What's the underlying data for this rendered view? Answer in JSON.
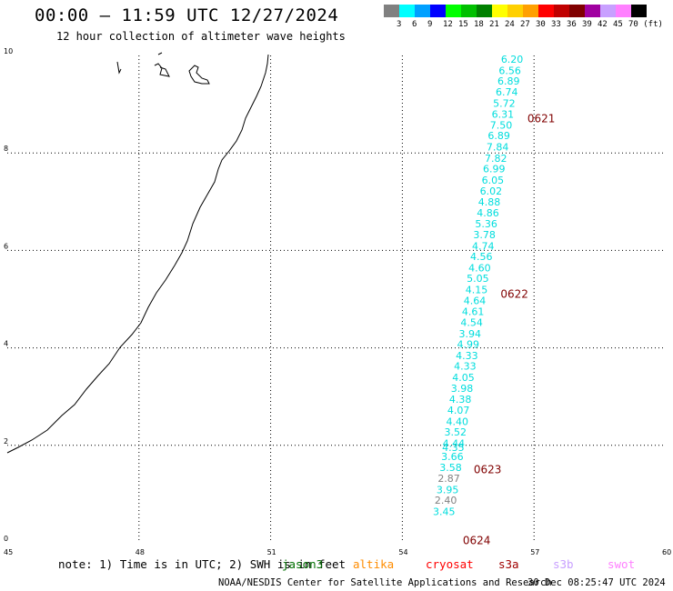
{
  "header": {
    "title": "00:00 — 11:59 UTC 12/27/2024",
    "subtitle": "12 hour collection of altimeter wave heights"
  },
  "legend": {
    "colors": [
      "#808080",
      "#00ffff",
      "#00a0ff",
      "#0000ff",
      "#00ff00",
      "#00c000",
      "#008000",
      "#ffff00",
      "#ffd000",
      "#ffa000",
      "#ff0000",
      "#c00000",
      "#800000",
      "#a000a0",
      "#c8a0ff",
      "#ff80ff",
      "#000000"
    ],
    "labels": [
      "3",
      "6",
      "9",
      "12",
      "15",
      "18",
      "21",
      "24",
      "27",
      "30",
      "33",
      "36",
      "39",
      "42",
      "45",
      "70 (ft)"
    ]
  },
  "map": {
    "lon_ticks": [
      "45",
      "48",
      "51",
      "54",
      "57",
      "60"
    ],
    "lat_ticks": [
      "0",
      "2",
      "4",
      "6",
      "8",
      "10"
    ],
    "lon_range": [
      45,
      60
    ],
    "lat_range": [
      0,
      10
    ],
    "track_times": [
      {
        "label": "0621",
        "lat": 8.7
      },
      {
        "label": "0622",
        "lat": 5.1
      },
      {
        "label": "0623",
        "lat": 1.5
      },
      {
        "label": "0624",
        "lat": 0.05
      }
    ],
    "track_points": [
      {
        "lon": 56.5,
        "lat": 9.85,
        "v": "6.20"
      },
      {
        "lon": 56.45,
        "lat": 9.62,
        "v": "6.56"
      },
      {
        "lon": 56.42,
        "lat": 9.4,
        "v": "6.89"
      },
      {
        "lon": 56.38,
        "lat": 9.18,
        "v": "6.74"
      },
      {
        "lon": 56.32,
        "lat": 8.95,
        "v": "5.72"
      },
      {
        "lon": 56.29,
        "lat": 8.72,
        "v": "6.31"
      },
      {
        "lon": 56.25,
        "lat": 8.5,
        "v": "7.50"
      },
      {
        "lon": 56.2,
        "lat": 8.28,
        "v": "6.89"
      },
      {
        "lon": 56.17,
        "lat": 8.05,
        "v": "7.84"
      },
      {
        "lon": 56.13,
        "lat": 7.82,
        "v": "7.82"
      },
      {
        "lon": 56.09,
        "lat": 7.6,
        "v": "6.99"
      },
      {
        "lon": 56.06,
        "lat": 7.37,
        "v": "6.05"
      },
      {
        "lon": 56.02,
        "lat": 7.15,
        "v": "6.02"
      },
      {
        "lon": 55.98,
        "lat": 6.92,
        "v": "4.88"
      },
      {
        "lon": 55.95,
        "lat": 6.7,
        "v": "4.86"
      },
      {
        "lon": 55.91,
        "lat": 6.47,
        "v": "5.36"
      },
      {
        "lon": 55.87,
        "lat": 6.25,
        "v": "3.78"
      },
      {
        "lon": 55.84,
        "lat": 6.02,
        "v": "4.74"
      },
      {
        "lon": 55.8,
        "lat": 5.8,
        "v": "4.56"
      },
      {
        "lon": 55.76,
        "lat": 5.57,
        "v": "4.60"
      },
      {
        "lon": 55.72,
        "lat": 5.35,
        "v": "5.05"
      },
      {
        "lon": 55.69,
        "lat": 5.12,
        "v": "4.15"
      },
      {
        "lon": 55.65,
        "lat": 4.9,
        "v": "4.64"
      },
      {
        "lon": 55.61,
        "lat": 4.67,
        "v": "4.61"
      },
      {
        "lon": 55.58,
        "lat": 4.45,
        "v": "4.54"
      },
      {
        "lon": 55.54,
        "lat": 4.22,
        "v": "3.94"
      },
      {
        "lon": 55.5,
        "lat": 4.0,
        "v": "4.99"
      },
      {
        "lon": 55.47,
        "lat": 3.77,
        "v": "4.33"
      },
      {
        "lon": 55.43,
        "lat": 3.55,
        "v": "4.33"
      },
      {
        "lon": 55.39,
        "lat": 3.32,
        "v": "4.05"
      },
      {
        "lon": 55.36,
        "lat": 3.1,
        "v": "3.98"
      },
      {
        "lon": 55.32,
        "lat": 2.87,
        "v": "4.38"
      },
      {
        "lon": 55.28,
        "lat": 2.65,
        "v": "4.07"
      },
      {
        "lon": 55.25,
        "lat": 2.42,
        "v": "4.40"
      },
      {
        "lon": 55.21,
        "lat": 2.2,
        "v": "3.52"
      },
      {
        "lon": 55.17,
        "lat": 1.97,
        "v": "4.44"
      },
      {
        "lon": 55.16,
        "lat": 1.88,
        "v": "4.35"
      },
      {
        "lon": 55.14,
        "lat": 1.7,
        "v": "3.66"
      },
      {
        "lon": 55.1,
        "lat": 1.47,
        "v": "3.58"
      },
      {
        "lon": 55.06,
        "lat": 1.25,
        "v": "2.87"
      },
      {
        "lon": 55.03,
        "lat": 1.02,
        "v": "3.95"
      },
      {
        "lon": 54.99,
        "lat": 0.8,
        "v": "2.40"
      },
      {
        "lon": 54.95,
        "lat": 0.57,
        "v": "3.45"
      }
    ],
    "cyan_color": "#00dddd",
    "grey_color": "#808080",
    "time_color": "#800000"
  },
  "note": {
    "text": "note: 1) Time is in UTC; 2) SWH is in feet",
    "satellites": [
      {
        "name": "jason3",
        "color": "#007000"
      },
      {
        "name": "altika",
        "color": "#ff8c00"
      },
      {
        "name": "cryosat",
        "color": "#ff0000"
      },
      {
        "name": "s3a",
        "color": "#a00000"
      },
      {
        "name": "s3b",
        "color": "#c8a0ff"
      },
      {
        "name": "swot",
        "color": "#ff80ff"
      }
    ]
  },
  "footer": {
    "center": "NOAA/NESDIS Center for Satellite Applications and Research",
    "date": "30 Dec 08:25:47 UTC 2024"
  }
}
